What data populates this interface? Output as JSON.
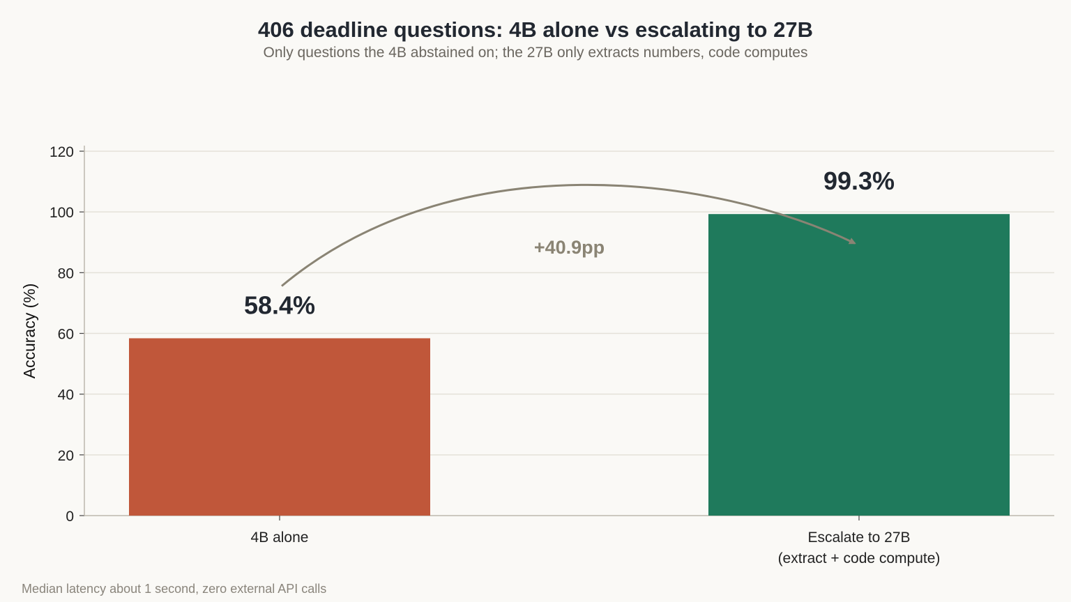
{
  "chart_data": {
    "type": "bar",
    "title": "406 deadline questions: 4B alone vs escalating to 27B",
    "subtitle": "Only questions the 4B abstained on; the 27B only extracts numbers, code computes",
    "ylabel": "Accuracy (%)",
    "xlabel": "",
    "ylim": [
      0,
      120
    ],
    "yticks": [
      0,
      20,
      40,
      60,
      80,
      100,
      120
    ],
    "grid": true,
    "categories": [
      [
        "4B alone"
      ],
      [
        "Escalate to 27B",
        "(extract + code compute)"
      ]
    ],
    "values": [
      58.4,
      99.3
    ],
    "value_labels": [
      "58.4%",
      "99.3%"
    ],
    "colors": [
      "#c0573a",
      "#1f7a5c"
    ],
    "annotation": {
      "text": "+40.9pp",
      "from": 0,
      "to": 1,
      "color": "#8a8474"
    },
    "footnote": "Median latency about 1 second, zero external API calls"
  }
}
